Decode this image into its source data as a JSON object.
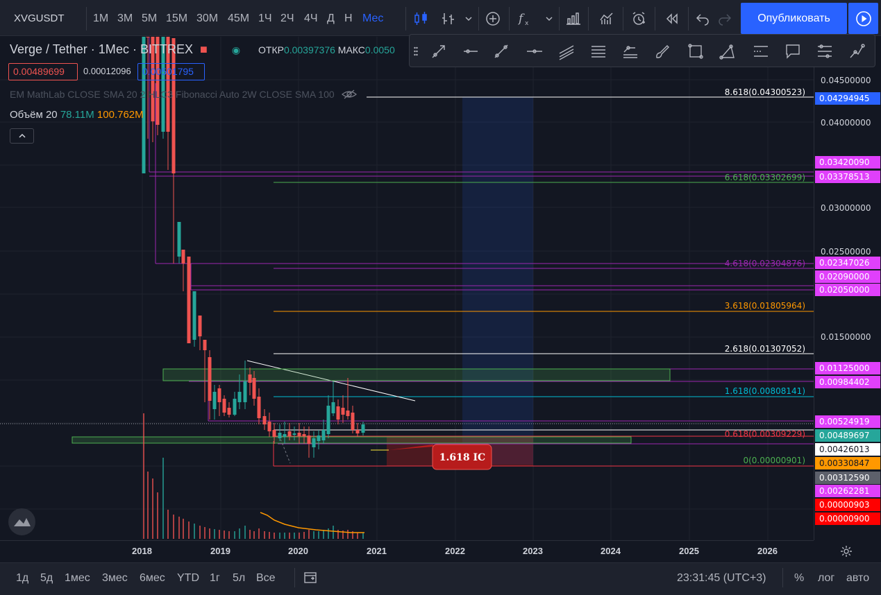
{
  "toolbar": {
    "symbol": "XVGUSDT",
    "timeframes": [
      "1М",
      "3М",
      "5М",
      "15М",
      "30М",
      "45М",
      "1Ч",
      "2Ч",
      "4Ч",
      "Д",
      "Н",
      "Мес"
    ],
    "active_timeframe": "Мес",
    "publish_label": "Опубликовать"
  },
  "legend": {
    "title": "Verge / Tether · 1Мес · BITTREX",
    "open_label": "ОТКР",
    "open_value": "0.00397376",
    "high_label": "МАКС",
    "high_value": "0.0050",
    "bid": "0.00489699",
    "spread": "0.00012096",
    "ask": "0.00501795",
    "indicators": "EM MathLab CLOSE SMA 20 2 HLC3  Fibonacci Auto 2W CLOSE SMA 100",
    "volume_label": "Объём 20",
    "volume_value": "78.11M",
    "volume_ma": "100.762M"
  },
  "price_axis": {
    "ticks": [
      "0.04500000",
      "0.04000000",
      "0.03000000",
      "0.02500000",
      "0.01500000"
    ],
    "labels": [
      {
        "text": "0.04294945",
        "color": "#2962ff",
        "fg": "#ffffff"
      },
      {
        "text": "0.03420090",
        "color": "#e040fb",
        "fg": "#ffffff"
      },
      {
        "text": "0.03378513",
        "color": "#e040fb",
        "fg": "#ffffff"
      },
      {
        "text": "0.02347026",
        "color": "#e040fb",
        "fg": "#ffffff"
      },
      {
        "text": "0.02090000",
        "color": "#e040fb",
        "fg": "#ffffff"
      },
      {
        "text": "0.02050000",
        "color": "#e040fb",
        "fg": "#ffffff"
      },
      {
        "text": "0.01125000",
        "color": "#e040fb",
        "fg": "#ffffff"
      },
      {
        "text": "0.00984402",
        "color": "#e040fb",
        "fg": "#ffffff"
      },
      {
        "text": "0.00524919",
        "color": "#e040fb",
        "fg": "#ffffff"
      },
      {
        "text": "0.00489697",
        "color": "#26a69a",
        "fg": "#ffffff"
      },
      {
        "text": "0.00426013",
        "color": "#ffffff",
        "fg": "#131722"
      },
      {
        "text": "0.00330847",
        "color": "#ff9800",
        "fg": "#131722"
      },
      {
        "text": "0.00312590",
        "color": "#5d606b",
        "fg": "#ffffff"
      },
      {
        "text": "0.00262281",
        "color": "#e040fb",
        "fg": "#ffffff"
      },
      {
        "text": "0.00000903",
        "color": "#ff0000",
        "fg": "#ffffff"
      },
      {
        "text": "0.00000900",
        "color": "#ff0000",
        "fg": "#ffffff"
      }
    ]
  },
  "fib_levels": [
    {
      "text": "8.618(0.04300523)",
      "color": "#ffffff"
    },
    {
      "text": "6.618(0.03302699)",
      "color": "#4caf50"
    },
    {
      "text": "4.618(0.02304876)",
      "color": "#9c27b0"
    },
    {
      "text": "3.618(0.01805964)",
      "color": "#ff9800"
    },
    {
      "text": "2.618(0.01307052)",
      "color": "#ffffff"
    },
    {
      "text": "1.618(0.00808141)",
      "color": "#00bcd4"
    },
    {
      "text": "0.618(0.00309229)",
      "color": "#f23645"
    },
    {
      "text": "0(0.00000901)",
      "color": "#4caf50"
    }
  ],
  "callout": "1.618 IC",
  "time_axis": [
    "2018",
    "2019",
    "2020",
    "2021",
    "2022",
    "2023",
    "2024",
    "2025",
    "2026"
  ],
  "bottom": {
    "ranges": [
      "1д",
      "5д",
      "1мес",
      "3мес",
      "6мес",
      "YTD",
      "1г",
      "5л",
      "Все"
    ],
    "clock": "23:31:45 (UTC+3)",
    "percent": "%",
    "log": "лог",
    "auto": "авто"
  },
  "colors": {
    "up": "#26a69a",
    "down": "#ef5350",
    "accent": "#2962ff",
    "background": "#131722"
  }
}
